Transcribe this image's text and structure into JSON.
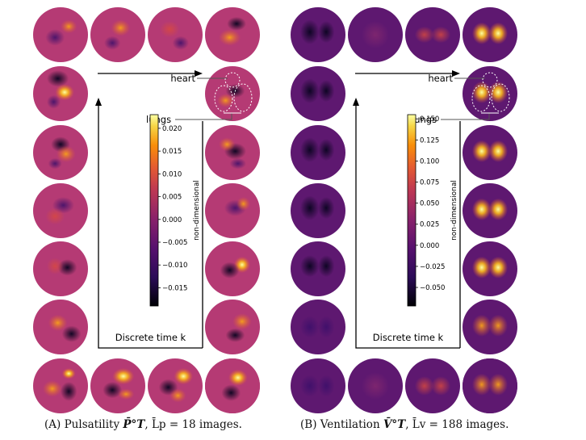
{
  "panels": [
    {
      "key": "a",
      "caption_label": "(A)",
      "caption_text": "Pulsatility",
      "caption_symbol": "P̄°T",
      "caption_rest": ", L̄p = 18 images.",
      "colorbar_label": "non-dimensional",
      "colorbar_ticks": [
        "0.020",
        "0.015",
        "0.010",
        "0.005",
        "0.000",
        "−0.005",
        "−0.010",
        "−0.015"
      ],
      "colorbar_range": [
        -0.019,
        0.023
      ],
      "annotation_heart": "heart",
      "annotation_lungs": "lungs",
      "axis_label": "Discrete time k"
    },
    {
      "key": "b",
      "caption_label": "(B)",
      "caption_text": "Ventilation",
      "caption_symbol": "V̄°T",
      "caption_rest": ", L̄v = 188 images.",
      "colorbar_label": "non-dimensional",
      "colorbar_ticks": [
        "0.150",
        "0.125",
        "0.100",
        "0.075",
        "0.050",
        "0.025",
        "0.000",
        "−0.025",
        "−0.050"
      ],
      "colorbar_range": [
        -0.072,
        0.155
      ],
      "annotation_heart": "heart",
      "annotation_lungs": "lungs",
      "axis_label": "Discrete time k"
    }
  ],
  "colors": {
    "low": "#000004",
    "mid": "#7a2270",
    "high": "#fcffa4",
    "background_a": "#b73779",
    "background_b": "#6a1c6e"
  }
}
